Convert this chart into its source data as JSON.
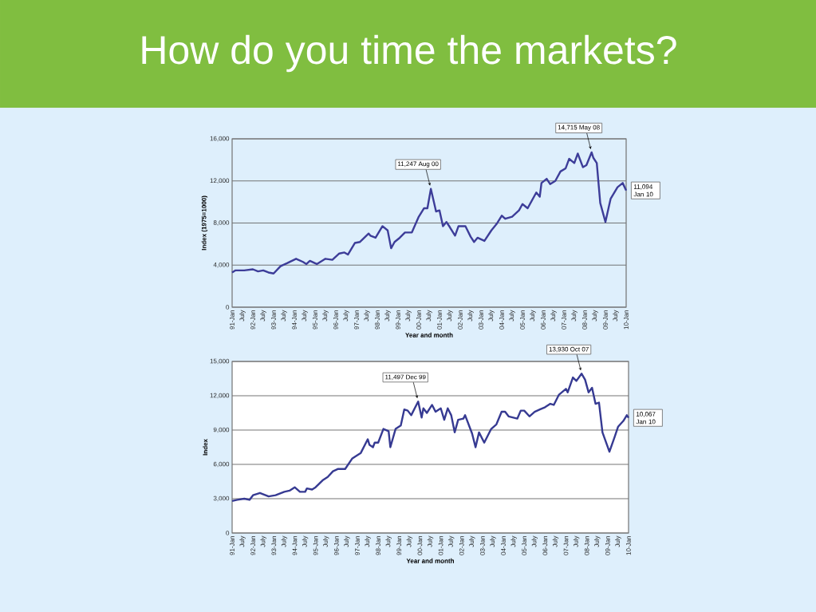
{
  "chart_data": [
    {
      "type": "line",
      "title": "How do you time the markets?",
      "xlabel": "Year and month",
      "ylabel": "Index (1975=1000)",
      "x": [
        "1991-01",
        "1991-03",
        "1991-08",
        "1992-01",
        "1992-04",
        "1992-07",
        "1992-10",
        "1993-01",
        "1993-05",
        "1993-09",
        "1994-02",
        "1994-06",
        "1994-08",
        "1994-10",
        "1995-02",
        "1995-07",
        "1995-11",
        "1996-03",
        "1996-06",
        "1996-08",
        "1996-12",
        "1997-03",
        "1997-08",
        "1997-09",
        "1997-12",
        "1998-04",
        "1998-07",
        "1998-09",
        "1998-11",
        "1999-02",
        "1999-05",
        "1999-09",
        "2000-01",
        "2000-04",
        "2000-06",
        "2000-08",
        "2000-11",
        "2001-01",
        "2001-03",
        "2001-05",
        "2001-07",
        "2001-10",
        "2001-12",
        "2002-04",
        "2002-07",
        "2002-09",
        "2002-11",
        "2003-03",
        "2003-07",
        "2003-10",
        "2004-01",
        "2004-03",
        "2004-07",
        "2004-11",
        "2005-01",
        "2005-04",
        "2005-09",
        "2005-11",
        "2005-12",
        "2006-03",
        "2006-05",
        "2006-08",
        "2006-11",
        "2007-02",
        "2007-04",
        "2007-07",
        "2007-09",
        "2007-12",
        "2008-02",
        "2008-05",
        "2008-06",
        "2008-08",
        "2008-10",
        "2009-01",
        "2009-04",
        "2009-08",
        "2009-11",
        "2010-01"
      ],
      "series": [
        {
          "color": "#3d3d99",
          "values": [
            3300,
            3500,
            3500,
            3600,
            3400,
            3500,
            3300,
            3200,
            3900,
            4200,
            4600,
            4300,
            4100,
            4400,
            4100,
            4600,
            4500,
            5100,
            5200,
            5000,
            6100,
            6200,
            7000,
            6800,
            6600,
            7700,
            7300,
            5600,
            6200,
            6600,
            7100,
            7100,
            8600,
            9400,
            9400,
            11247,
            9100,
            9200,
            7700,
            8100,
            7600,
            6800,
            7700,
            7700,
            6700,
            6200,
            6600,
            6300,
            7300,
            7900,
            8700,
            8400,
            8600,
            9200,
            9800,
            9400,
            10900,
            10500,
            11800,
            12200,
            11700,
            12000,
            12900,
            13200,
            14100,
            13700,
            14600,
            13300,
            13500,
            14715,
            14200,
            13700,
            9900,
            8100,
            10300,
            11400,
            11800,
            11094
          ]
        }
      ],
      "xlim": [
        "1991-01",
        "2010-01"
      ],
      "ylim": [
        0,
        16000
      ],
      "yticks": [
        0,
        {
          "value": 4000,
          "label": "4,000"
        },
        {
          "value": 8000,
          "label": "8,000"
        },
        {
          "value": 12000,
          "label": "12,000"
        },
        {
          "value": 16000,
          "label": "16,000"
        }
      ],
      "xticks": [
        {
          "value": "1991-01",
          "label": "91-Jan"
        },
        {
          "value": "1991-07",
          "label": "July"
        },
        {
          "value": "1992-01",
          "label": "92-Jan"
        },
        {
          "value": "1992-07",
          "label": "July"
        },
        {
          "value": "1993-01",
          "label": "93-Jan"
        },
        {
          "value": "1993-07",
          "label": "July"
        },
        {
          "value": "1994-01",
          "label": "94-Jan"
        },
        {
          "value": "1994-07",
          "label": "July"
        },
        {
          "value": "1995-01",
          "label": "95-Jan"
        },
        {
          "value": "1995-07",
          "label": "July"
        },
        {
          "value": "1996-01",
          "label": "96-Jan"
        },
        {
          "value": "1996-07",
          "label": "July"
        },
        {
          "value": "1997-01",
          "label": "97-Jan"
        },
        {
          "value": "1997-07",
          "label": "July"
        },
        {
          "value": "1998-01",
          "label": "98-Jan"
        },
        {
          "value": "1998-07",
          "label": "July"
        },
        {
          "value": "1999-01",
          "label": "99-Jan"
        },
        {
          "value": "1999-07",
          "label": "July"
        },
        {
          "value": "2000-01",
          "label": "00-Jan"
        },
        {
          "value": "2000-07",
          "label": "July"
        },
        {
          "value": "2001-01",
          "label": "01-Jan"
        },
        {
          "value": "2001-07",
          "label": "July"
        },
        {
          "value": "2002-01",
          "label": "02-Jan"
        },
        {
          "value": "2002-07",
          "label": "July"
        },
        {
          "value": "2003-01",
          "label": "03-Jan"
        },
        {
          "value": "2003-07",
          "label": "July"
        },
        {
          "value": "2004-01",
          "label": "04-Jan"
        },
        {
          "value": "2004-07",
          "label": "July"
        },
        {
          "value": "2005-01",
          "label": "05-Jan"
        },
        {
          "value": "2005-07",
          "label": "July"
        },
        {
          "value": "2006-01",
          "label": "06-Jan"
        },
        {
          "value": "2006-07",
          "label": "July"
        },
        {
          "value": "2007-01",
          "label": "07-Jan"
        },
        {
          "value": "2007-07",
          "label": "July"
        },
        {
          "value": "2008-01",
          "label": "08-Jan"
        },
        {
          "value": "2008-07",
          "label": "July"
        },
        {
          "value": "2009-01",
          "label": "09-Jan"
        },
        {
          "value": "2009-07",
          "label": "July"
        },
        {
          "value": "2010-01",
          "label": "10-Jan"
        }
      ],
      "grid": "y",
      "annotations": [
        {
          "text": "11,247 Aug 00",
          "x": "2000-08",
          "y": 11247
        },
        {
          "text": "14,715 May 08",
          "x": "2008-05",
          "y": 14715
        },
        {
          "text": "11,094 Jan 10",
          "x": "2010-01",
          "y": 11094
        }
      ]
    },
    {
      "type": "line",
      "xlabel": "Year and month",
      "ylabel": "Index",
      "x": [
        "1991-01",
        "1991-04",
        "1991-08",
        "1991-11",
        "1992-01",
        "1992-05",
        "1992-10",
        "1993-02",
        "1993-07",
        "1993-10",
        "1994-01",
        "1994-04",
        "1994-07",
        "1994-08",
        "1994-11",
        "1995-01",
        "1995-05",
        "1995-08",
        "1995-11",
        "1996-02",
        "1996-06",
        "1996-10",
        "1997-01",
        "1997-03",
        "1997-07",
        "1997-08",
        "1997-10",
        "1997-11",
        "1998-01",
        "1998-04",
        "1998-07",
        "1998-08",
        "1998-11",
        "1999-02",
        "1999-04",
        "1999-06",
        "1999-08",
        "1999-12",
        "2000-02",
        "2000-03",
        "2000-05",
        "2000-08",
        "2000-10",
        "2001-01",
        "2001-03",
        "2001-05",
        "2001-07",
        "2001-09",
        "2001-11",
        "2002-02",
        "2002-03",
        "2002-07",
        "2002-09",
        "2002-11",
        "2003-02",
        "2003-06",
        "2003-09",
        "2003-12",
        "2004-02",
        "2004-04",
        "2004-09",
        "2004-11",
        "2005-01",
        "2005-04",
        "2005-07",
        "2005-10",
        "2006-01",
        "2006-04",
        "2006-06",
        "2006-09",
        "2007-01",
        "2007-02",
        "2007-05",
        "2007-07",
        "2007-10",
        "2007-12",
        "2008-02",
        "2008-04",
        "2008-06",
        "2008-08",
        "2008-10",
        "2009-02",
        "2009-05",
        "2009-07",
        "2009-10",
        "2009-12",
        "2010-01"
      ],
      "series": [
        {
          "color": "#363a92",
          "values": [
            2800,
            2900,
            3000,
            2900,
            3300,
            3500,
            3200,
            3300,
            3600,
            3700,
            4000,
            3600,
            3600,
            3900,
            3800,
            4000,
            4600,
            4900,
            5400,
            5600,
            5600,
            6500,
            6800,
            7000,
            8200,
            7700,
            7500,
            7900,
            7900,
            9100,
            8900,
            7500,
            9100,
            9400,
            10800,
            10700,
            10300,
            11497,
            10100,
            10900,
            10500,
            11200,
            10600,
            10900,
            9900,
            10900,
            10300,
            8800,
            9900,
            10000,
            10300,
            8700,
            7500,
            8800,
            7900,
            9100,
            9500,
            10600,
            10600,
            10200,
            10000,
            10700,
            10700,
            10200,
            10600,
            10800,
            11000,
            11300,
            11200,
            12100,
            12600,
            12300,
            13600,
            13300,
            13930,
            13400,
            12300,
            12700,
            11300,
            11400,
            8800,
            7100,
            8400,
            9300,
            9800,
            10300,
            10067
          ]
        }
      ],
      "xlim": [
        "1991-01",
        "2010-01"
      ],
      "ylim": [
        0,
        15000
      ],
      "yticks": [
        0,
        {
          "value": 3000,
          "label": "3,000"
        },
        {
          "value": 6000,
          "label": "6,000"
        },
        {
          "value": 9000,
          "label": "9,000"
        },
        {
          "value": 12000,
          "label": "12,000"
        },
        {
          "value": 15000,
          "label": "15,000"
        }
      ],
      "xticks": [
        {
          "value": "1991-01",
          "label": "91-Jan"
        },
        {
          "value": "1991-07",
          "label": "July"
        },
        {
          "value": "1992-01",
          "label": "92-Jan"
        },
        {
          "value": "1992-07",
          "label": "July"
        },
        {
          "value": "1993-01",
          "label": "93-Jan"
        },
        {
          "value": "1993-07",
          "label": "July"
        },
        {
          "value": "1994-01",
          "label": "94-Jan"
        },
        {
          "value": "1994-07",
          "label": "July"
        },
        {
          "value": "1995-01",
          "label": "95-Jan"
        },
        {
          "value": "1995-07",
          "label": "July"
        },
        {
          "value": "1996-01",
          "label": "96-Jan"
        },
        {
          "value": "1996-07",
          "label": "July"
        },
        {
          "value": "1997-01",
          "label": "97-Jan"
        },
        {
          "value": "1997-07",
          "label": "July"
        },
        {
          "value": "1998-01",
          "label": "98-Jan"
        },
        {
          "value": "1998-07",
          "label": "July"
        },
        {
          "value": "1999-01",
          "label": "99-Jan"
        },
        {
          "value": "1999-07",
          "label": "July"
        },
        {
          "value": "2000-01",
          "label": "00-Jan"
        },
        {
          "value": "2000-07",
          "label": "July"
        },
        {
          "value": "2001-01",
          "label": "01-Jan"
        },
        {
          "value": "2001-07",
          "label": "July"
        },
        {
          "value": "2002-01",
          "label": "02-Jan"
        },
        {
          "value": "2002-07",
          "label": "July"
        },
        {
          "value": "2003-01",
          "label": "03-Jan"
        },
        {
          "value": "2003-07",
          "label": "July"
        },
        {
          "value": "2004-01",
          "label": "04-Jan"
        },
        {
          "value": "2004-07",
          "label": "July"
        },
        {
          "value": "2005-01",
          "label": "05-Jan"
        },
        {
          "value": "2005-07",
          "label": "July"
        },
        {
          "value": "2006-01",
          "label": "06-Jan"
        },
        {
          "value": "2006-07",
          "label": "July"
        },
        {
          "value": "2007-01",
          "label": "07-Jan"
        },
        {
          "value": "2007-07",
          "label": "July"
        },
        {
          "value": "2008-01",
          "label": "08-Jan"
        },
        {
          "value": "2008-07",
          "label": "July"
        },
        {
          "value": "2009-01",
          "label": "09-Jan"
        },
        {
          "value": "2009-07",
          "label": "July"
        },
        {
          "value": "2010-01",
          "label": "10-Jan"
        }
      ],
      "grid": "y",
      "annotations": [
        {
          "text": "11,497 Dec 99",
          "x": "1999-12",
          "y": 11497
        },
        {
          "text": "13,930 Oct 07",
          "x": "2007-10",
          "y": 13930
        },
        {
          "text": "10,067 Jan 10",
          "x": "2010-01",
          "y": 10067
        }
      ]
    }
  ]
}
